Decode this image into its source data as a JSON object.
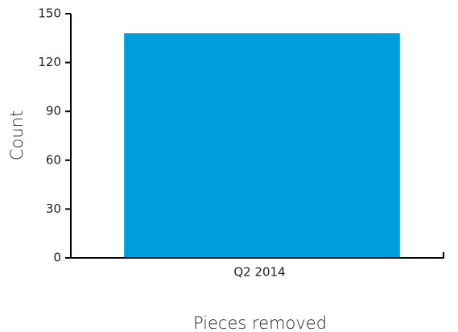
{
  "chart_data": {
    "type": "bar",
    "categories": [
      "Q2 2014"
    ],
    "values": [
      138
    ],
    "color": "#009ddc",
    "xlabel": "Pieces removed",
    "ylabel": "Count",
    "ylim": [
      0,
      150
    ],
    "yticks": [
      0,
      30,
      60,
      90,
      120,
      150
    ],
    "grid": false
  }
}
